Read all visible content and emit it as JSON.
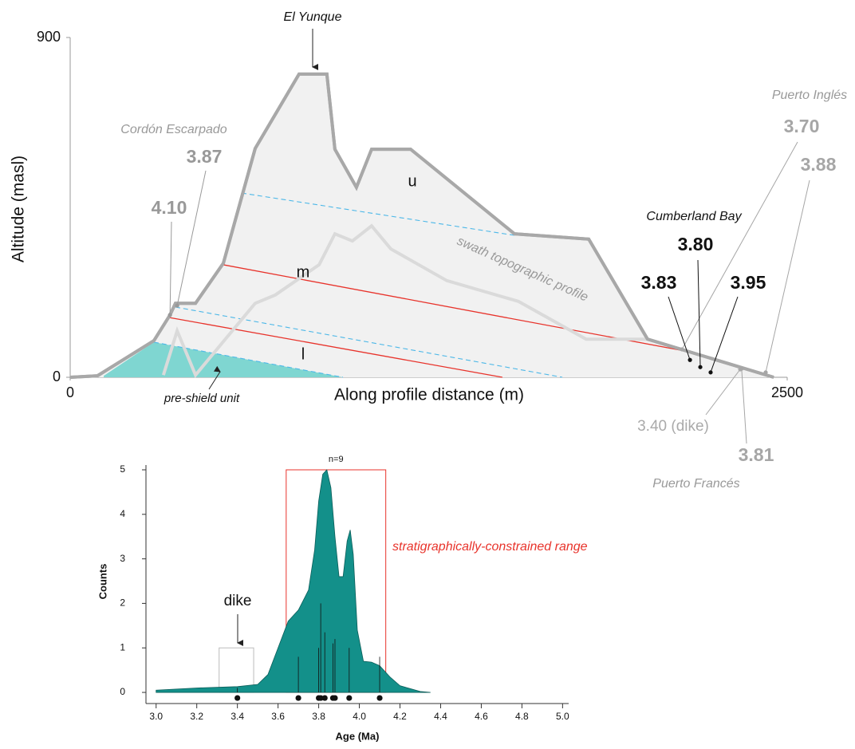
{
  "chart_data": [
    {
      "type": "profile",
      "x_label": "Along profile distance (m)",
      "y_label": "Altitude (masl)",
      "xlim": [
        0,
        2500
      ],
      "ylim": [
        0,
        900
      ],
      "xticks": [
        0,
        2500
      ],
      "yticks": [
        0,
        900
      ],
      "series": [
        {
          "color": "#a8a8a8",
          "fill": "#f1f1f1",
          "width": 4,
          "x": [
            0,
            95,
            292,
            348,
            367,
            437,
            534,
            645,
            798,
            895,
            923,
            998,
            1051,
            1187,
            1549,
            1808,
            2013,
            2453
          ],
          "values": [
            0,
            4,
            97,
            165,
            196,
            196,
            302,
            606,
            803,
            803,
            604,
            503,
            604,
            604,
            380,
            366,
            101,
            0
          ]
        },
        {
          "color": "#7fd6d1",
          "fill": "#7fd6d1",
          "width": 1,
          "x": [
            117,
            292,
            951
          ],
          "values": [
            4,
            93,
            0
          ]
        },
        {
          "color": "#e8332b",
          "width": 1.3,
          "x": [
            534,
            2141
          ],
          "values": [
            298,
            70
          ]
        },
        {
          "color": "#e8332b",
          "width": 1.3,
          "x": [
            348,
            1507
          ],
          "values": [
            158,
            0
          ]
        },
        {
          "color": "#4db8e8",
          "width": 1.1,
          "dashed": true,
          "x": [
            598,
            1549
          ],
          "values": [
            488,
            376
          ]
        },
        {
          "color": "#4db8e8",
          "width": 1.1,
          "dashed": true,
          "x": [
            367,
            1716
          ],
          "values": [
            186,
            0
          ]
        },
        {
          "color": "#4db8e8",
          "width": 1.1,
          "dashed": true,
          "x": [
            292,
            951
          ],
          "values": [
            93,
            0
          ]
        },
        {
          "color": "#dadada",
          "width": 4,
          "x": [
            325,
            373,
            437,
            645,
            715,
            868,
            923,
            984,
            1051,
            1118,
            1313,
            1563,
            1799,
            2013
          ],
          "values": [
            6,
            123,
            6,
            196,
            218,
            298,
            380,
            361,
            401,
            340,
            256,
            201,
            101,
            101
          ]
        }
      ],
      "samples": [
        {
          "label": "4.10",
          "x": 348,
          "y": 165,
          "color": "#999999"
        },
        {
          "label": "3.87",
          "x": 373,
          "y": 190,
          "color": "#999999"
        },
        {
          "label": "3.70",
          "x": 2133,
          "y": 74,
          "color": "#a6a6a6"
        },
        {
          "label": "3.88",
          "x": 2425,
          "y": 13,
          "color": "#a6a6a6"
        },
        {
          "label": "3.83",
          "x": 2161,
          "y": 46,
          "color": "#111111"
        },
        {
          "label": "3.80",
          "x": 2197,
          "y": 27,
          "color": "#111111"
        },
        {
          "label": "3.95",
          "x": 2233,
          "y": 13,
          "color": "#111111"
        },
        {
          "label": "3.40 (dike)",
          "x": 2336,
          "y": 21,
          "color": "#aaaaaa"
        },
        {
          "label": "3.81",
          "x": 2341,
          "y": 23,
          "color": "#a6a6a6"
        }
      ],
      "annotations": [
        "El Yunque",
        "Cordón Escarpado",
        "Puerto Inglés",
        "Cumberland Bay",
        "Puerto Francés",
        "pre-shield unit",
        "swath topographic profile",
        "u",
        "m",
        "l"
      ]
    },
    {
      "type": "kde",
      "x_label": "Age (Ma)",
      "y_label": "Counts",
      "xlim": [
        2.95,
        5.03
      ],
      "ylim": [
        -0.25,
        5
      ],
      "xticks": [
        {
          "value": 3,
          "label": "3.0"
        },
        3.2,
        3.4,
        3.6,
        3.8,
        {
          "value": 4,
          "label": "4.0"
        },
        4.2,
        4.4,
        4.6,
        4.8,
        {
          "value": 5,
          "label": "5.0"
        }
      ],
      "yticks": [
        0,
        1,
        2,
        3,
        4,
        5
      ],
      "color": "#13908a",
      "x": [
        3.0,
        3.2,
        3.4,
        3.5,
        3.55,
        3.6,
        3.65,
        3.7,
        3.75,
        3.78,
        3.8,
        3.82,
        3.84,
        3.86,
        3.88,
        3.9,
        3.92,
        3.94,
        3.955,
        3.97,
        3.99,
        4.02,
        4.06,
        4.1,
        4.15,
        4.2,
        4.3,
        4.35
      ],
      "values": [
        0.05,
        0.1,
        0.13,
        0.18,
        0.4,
        1.0,
        1.6,
        1.85,
        2.3,
        3.2,
        4.3,
        4.9,
        5.0,
        4.6,
        3.5,
        2.6,
        2.6,
        3.4,
        3.65,
        3.1,
        1.4,
        0.7,
        0.68,
        0.6,
        0.35,
        0.15,
        0.02,
        0
      ],
      "ages": [
        3.4,
        3.7,
        3.8,
        3.81,
        3.83,
        3.87,
        3.88,
        3.95,
        4.1
      ],
      "peak_heights": [
        0.1,
        0.8,
        1.0,
        2.0,
        1.35,
        1.1,
        1.2,
        1.0,
        0.8
      ],
      "boxes": [
        {
          "label": "stratigraphically-constrained range",
          "x": [
            3.64,
            4.13
          ],
          "top": 5,
          "color": "#e8332b",
          "note": "n=9"
        },
        {
          "label": "dike",
          "x": [
            3.31,
            3.48
          ],
          "top": 1,
          "color": "#bbbbbb"
        }
      ]
    }
  ]
}
